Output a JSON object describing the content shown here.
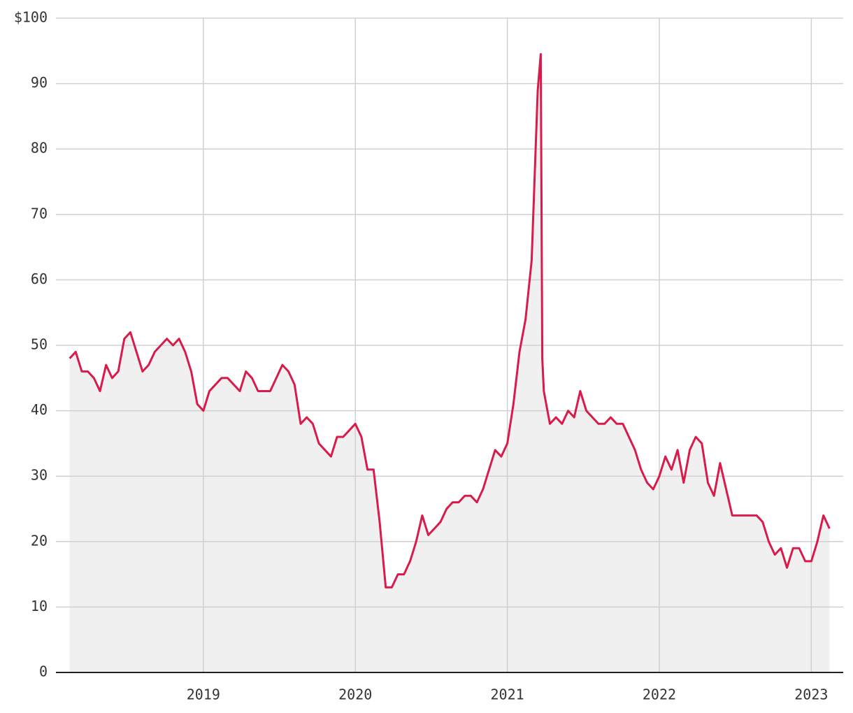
{
  "chart_data": {
    "type": "line",
    "x": [
      2018.12,
      2018.16,
      2018.2,
      2018.24,
      2018.28,
      2018.32,
      2018.36,
      2018.4,
      2018.44,
      2018.48,
      2018.52,
      2018.56,
      2018.6,
      2018.64,
      2018.68,
      2018.72,
      2018.76,
      2018.8,
      2018.84,
      2018.88,
      2018.92,
      2018.96,
      2019,
      2019.04,
      2019.08,
      2019.12,
      2019.16,
      2019.2,
      2019.24,
      2019.28,
      2019.32,
      2019.36,
      2019.4,
      2019.44,
      2019.48,
      2019.52,
      2019.56,
      2019.6,
      2019.64,
      2019.68,
      2019.72,
      2019.76,
      2019.8,
      2019.84,
      2019.88,
      2019.92,
      2019.96,
      2020,
      2020.04,
      2020.08,
      2020.12,
      2020.16,
      2020.2,
      2020.24,
      2020.28,
      2020.32,
      2020.36,
      2020.4,
      2020.44,
      2020.48,
      2020.52,
      2020.56,
      2020.6,
      2020.64,
      2020.68,
      2020.72,
      2020.76,
      2020.8,
      2020.84,
      2020.88,
      2020.92,
      2020.96,
      2021,
      2021.04,
      2021.08,
      2021.12,
      2021.16,
      2021.2,
      2021.22,
      2021.23,
      2021.24,
      2021.28,
      2021.32,
      2021.36,
      2021.4,
      2021.44,
      2021.48,
      2021.52,
      2021.56,
      2021.6,
      2021.64,
      2021.68,
      2021.72,
      2021.76,
      2021.8,
      2021.84,
      2021.88,
      2021.92,
      2021.96,
      2022,
      2022.04,
      2022.08,
      2022.12,
      2022.16,
      2022.2,
      2022.24,
      2022.28,
      2022.32,
      2022.36,
      2022.4,
      2022.44,
      2022.48,
      2022.52,
      2022.56,
      2022.6,
      2022.64,
      2022.68,
      2022.72,
      2022.76,
      2022.8,
      2022.84,
      2022.88,
      2022.92,
      2022.96,
      2023,
      2023.04,
      2023.08,
      2023.12
    ],
    "values": [
      48,
      49,
      46,
      46,
      45,
      43,
      47,
      45,
      46,
      51,
      52,
      49,
      46,
      47,
      49,
      50,
      51,
      50,
      51,
      49,
      46,
      41,
      40,
      43,
      44,
      45,
      45,
      44,
      43,
      46,
      45,
      43,
      43,
      43,
      45,
      47,
      46,
      44,
      38,
      39,
      38,
      35,
      34,
      33,
      36,
      36,
      37,
      38,
      36,
      31,
      31,
      23,
      13,
      13,
      15,
      15,
      17,
      20,
      24,
      21,
      22,
      23,
      25,
      26,
      26,
      27,
      27,
      26,
      28,
      31,
      34,
      33,
      35,
      41,
      49,
      54,
      63,
      89,
      94.5,
      48,
      43,
      38,
      39,
      38,
      40,
      39,
      43,
      40,
      39,
      38,
      38,
      39,
      38,
      38,
      36,
      34,
      31,
      29,
      28,
      30,
      33,
      31,
      34,
      29,
      34,
      36,
      35,
      29,
      27,
      32,
      28,
      24,
      24,
      24,
      24,
      24,
      23,
      20,
      18,
      19,
      16,
      19,
      19,
      17,
      17,
      20,
      24,
      22
    ],
    "color": "#d81b4a",
    "area_color": "#f0f0f0",
    "xlim": [
      2018.03,
      2023.21
    ],
    "xticks": [
      2019,
      2020,
      2021,
      2022,
      2023
    ],
    "ylim": [
      0,
      100
    ],
    "yticks": [
      0,
      10,
      20,
      30,
      40,
      50,
      60,
      70,
      80,
      90,
      {
        "value": 100,
        "label": "$100"
      }
    ],
    "grid": true
  }
}
